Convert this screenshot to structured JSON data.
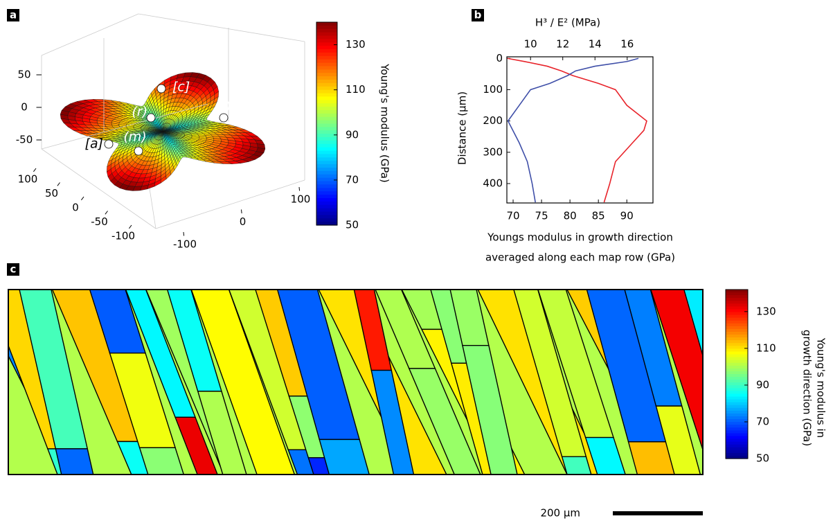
{
  "chart_data": [
    {
      "type": "surface3d",
      "panel": "a",
      "point_labels": [
        "[c]",
        "(r)",
        "(f)",
        "[a]",
        "(m)"
      ],
      "xlim": [
        -100,
        100
      ],
      "xticks": [
        -100,
        -50,
        0,
        50,
        100
      ],
      "ylim": [
        -100,
        100
      ],
      "yticks": [
        -100,
        0,
        100
      ],
      "zlim": [
        -50,
        50
      ],
      "zticks": [
        -50,
        0,
        50
      ],
      "colorbar": {
        "label": "Young's modulus (GPa)",
        "lim": [
          50,
          140
        ],
        "ticks": [
          50,
          70,
          90,
          110,
          130
        ]
      }
    },
    {
      "type": "line",
      "panel": "b",
      "x2label": "H³ / E² (MPa)",
      "ylabel": "Distance (µm)",
      "xlabel": [
        "Youngs modulus in growth direction",
        "averaged along each map row (GPa)"
      ],
      "y": [
        0,
        10,
        25,
        40,
        55,
        80,
        100,
        150,
        200,
        230,
        270,
        330,
        400,
        460
      ],
      "ylim": [
        -5,
        462
      ],
      "yticks": [
        0,
        100,
        200,
        300,
        400
      ],
      "y_inverted": true,
      "xlim": [
        68.9,
        94.6
      ],
      "xticks": [
        70,
        75,
        80,
        85,
        90
      ],
      "x2lim": [
        8.53,
        17.6
      ],
      "x2ticks": [
        10,
        12,
        14,
        16
      ],
      "series": [
        {
          "color": "#e8232a",
          "axis": "x",
          "values": [
            69,
            72,
            76,
            78.5,
            80.5,
            85,
            88,
            90,
            93.5,
            93,
            91,
            88,
            87,
            86
          ]
        },
        {
          "color": "#3f4fa8",
          "axis": "x2",
          "values": [
            16.7,
            16,
            14,
            12.8,
            12.3,
            11.2,
            10,
            9.3,
            8.6,
            8.9,
            9.3,
            9.8,
            10.1,
            10.3
          ]
        }
      ]
    },
    {
      "type": "map",
      "panel": "c",
      "colorbar": {
        "label": [
          "Young's modulus in",
          "growth direction (GPa)"
        ],
        "lim": [
          50,
          142
        ],
        "ticks": [
          50,
          70,
          90,
          110,
          130
        ]
      },
      "scale_bar": "200 µm"
    }
  ]
}
